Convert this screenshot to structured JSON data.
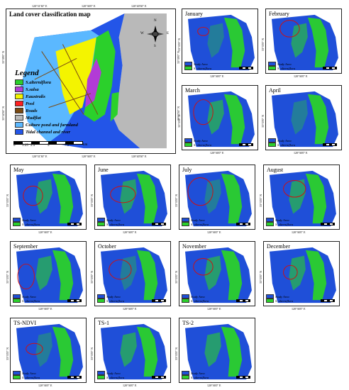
{
  "main_map": {
    "title": "Land cover classification map",
    "legend_title": "Legend",
    "legend": [
      {
        "label": "S.alterniflora",
        "color": "#2bd02b"
      },
      {
        "label": "S.salsa",
        "color": "#b23bd6"
      },
      {
        "label": "P.australis",
        "color": "#f4f400"
      },
      {
        "label": "Pool",
        "color": "#ff2020"
      },
      {
        "label": "Roads",
        "color": "#7a4a12"
      },
      {
        "label": "Mudflat",
        "color": "#b9b9b9"
      },
      {
        "label": "Culture pond and farmland",
        "color": "#5bb8ff"
      },
      {
        "label": "Tidal channel and river",
        "color": "#2355e8"
      }
    ],
    "scale_labels": [
      "0",
      "1.25",
      "2.5",
      "5",
      "7.5"
    ],
    "scale_unit": "km",
    "top_ticks": [
      "120°31'30\" E",
      "120°36'0\" E",
      "120°40'30\" E"
    ],
    "bottom_ticks": [
      "120°31'30\" E",
      "120°36'0\" E",
      "120°40'30\" E"
    ],
    "left_ticks": [
      "33°39'0\" N",
      "33°34'30\" N"
    ],
    "right_ticks": [
      "33°39'0\" N",
      "33°34'30\" N"
    ],
    "compass": {
      "n": "N",
      "s": "S",
      "e": "E",
      "w": "W"
    }
  },
  "small_maps": [
    {
      "title": "January",
      "oval": true
    },
    {
      "title": "February",
      "oval": true
    },
    {
      "title": "March",
      "oval": true
    },
    {
      "title": "April",
      "oval": false
    },
    {
      "title": "May",
      "oval": true
    },
    {
      "title": "June",
      "oval": true
    },
    {
      "title": "July",
      "oval": true
    },
    {
      "title": "August",
      "oval": true
    },
    {
      "title": "September",
      "oval": true
    },
    {
      "title": "October",
      "oval": true
    },
    {
      "title": "November",
      "oval": true
    },
    {
      "title": "December",
      "oval": true
    },
    {
      "title": "TS-NDVI",
      "oval": true
    },
    {
      "title": "TS-1",
      "oval": false
    },
    {
      "title": "TS-2",
      "oval": false
    }
  ],
  "small_legend": {
    "study_area": "Study Area",
    "species": "S. alterniflora"
  },
  "small_ticks": {
    "lon": "120°36'0\" E",
    "lat": "33°33'0\" N"
  },
  "colors": {
    "study_area": "#1f4fd8",
    "species": "#2bd02b",
    "oval": "#d01010"
  }
}
